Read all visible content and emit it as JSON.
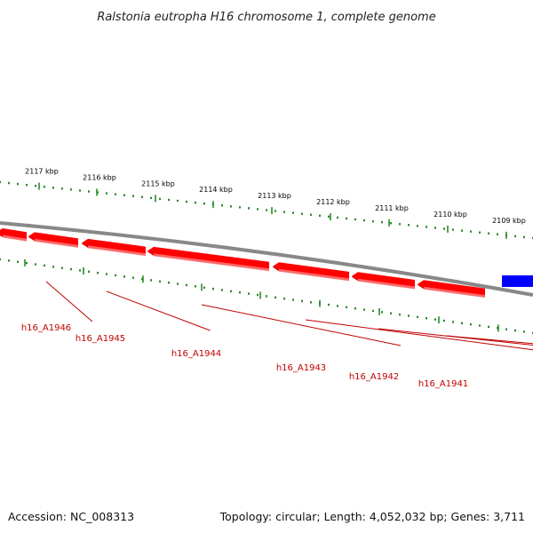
{
  "title": "Ralstonia eutropha H16 chromosome 1, complete genome",
  "footer": {
    "accession": "Accession: NC_008313",
    "summary": "Topology: circular; Length: 4,052,032 bp; Genes: 3,711"
  },
  "colors": {
    "backbone": "#888888",
    "gene_fill": "#ff0000",
    "gene_dark": "#d00000",
    "gene_highlight": "#ff7a7a",
    "other_gene": "#0000ff",
    "tick": "#2a8a2a",
    "label": "#c00000"
  },
  "scale_ticks": [
    {
      "label": "2117 kbp"
    },
    {
      "label": "2116 kbp"
    },
    {
      "label": "2115 kbp"
    },
    {
      "label": "2114 kbp"
    },
    {
      "label": "2113 kbp"
    },
    {
      "label": "2112 kbp"
    },
    {
      "label": "2111 kbp"
    },
    {
      "label": "2110 kbp"
    },
    {
      "label": "2109 kbp"
    }
  ],
  "genes": [
    {
      "label": "h16_A1946"
    },
    {
      "label": "h16_A1945"
    },
    {
      "label": "h16_A1944"
    },
    {
      "label": "h16_A1943"
    },
    {
      "label": "h16_A1942"
    },
    {
      "label": "h16_A1941"
    }
  ]
}
